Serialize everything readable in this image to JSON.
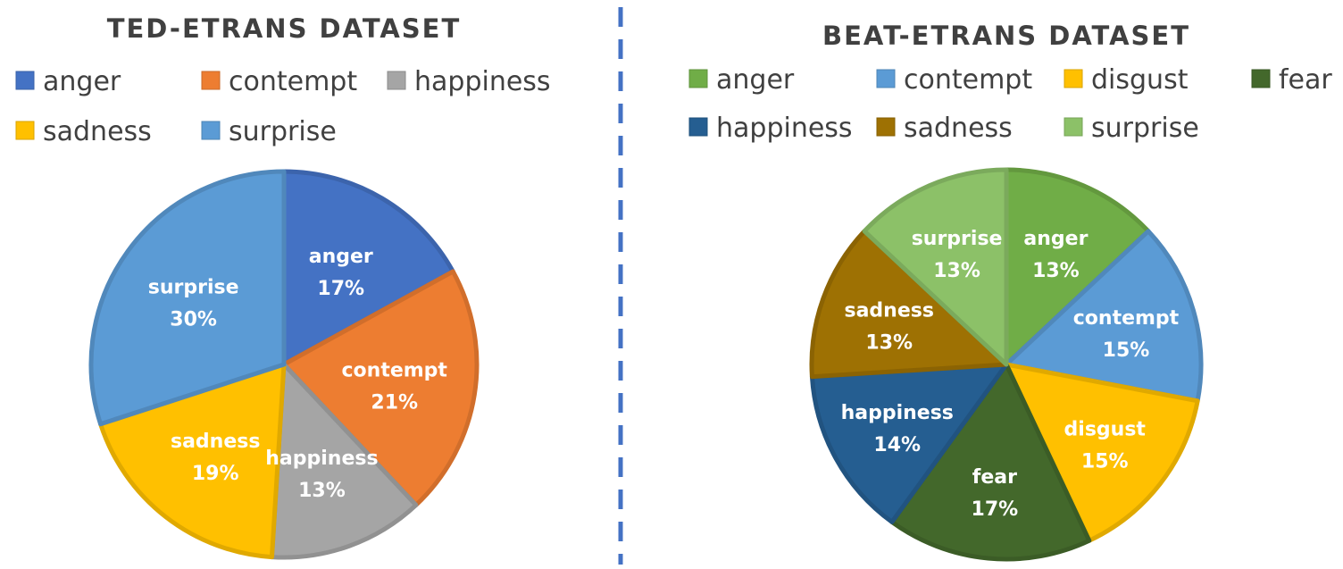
{
  "chart_data": [
    {
      "type": "pie",
      "title": "TED-ETRANS DATASET",
      "categories": [
        "anger",
        "contempt",
        "happiness",
        "sadness",
        "surprise"
      ],
      "values": [
        17,
        21,
        13,
        19,
        30
      ],
      "value_labels": [
        "17%",
        "21%",
        "13%",
        "19%",
        "30%"
      ],
      "colors": [
        "#4472C4",
        "#ED7D31",
        "#A5A5A5",
        "#FFC000",
        "#5B9BD5"
      ],
      "legend": [
        "anger",
        "contempt",
        "happiness",
        "sadness",
        "surprise"
      ],
      "legend_placement": "top"
    },
    {
      "type": "pie",
      "title": "BEAT-ETRANS DATASET",
      "categories": [
        "anger",
        "contempt",
        "disgust",
        "fear",
        "happiness",
        "sadness",
        "surprise"
      ],
      "values": [
        13,
        15,
        15,
        17,
        14,
        13,
        13
      ],
      "value_labels": [
        "13%",
        "15%",
        "15%",
        "17%",
        "14%",
        "13%",
        "13%"
      ],
      "colors": [
        "#70AD47",
        "#5B9BD5",
        "#FFC000",
        "#43682B",
        "#255E91",
        "#9E7103",
        "#8CC168"
      ],
      "legend": [
        "anger",
        "contempt",
        "disgust",
        "fear",
        "happiness",
        "sadness",
        "surprise"
      ],
      "legend_placement": "top"
    }
  ],
  "divider_color": "#4472C4"
}
